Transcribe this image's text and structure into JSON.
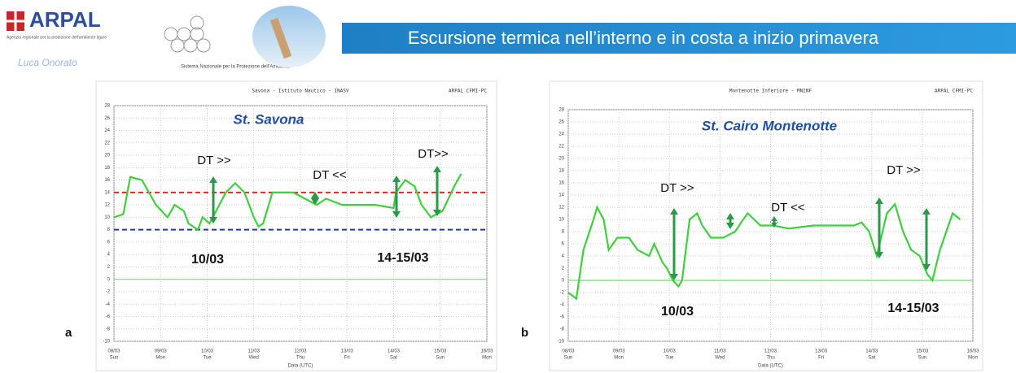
{
  "header": {
    "logo": "ARPAL",
    "logo_subtitle": "Agenzia regionale per la protezione dell'ambiente ligure",
    "author": "Luca Onorato",
    "network": "Sistema Nazionale per la Protezione dell'Ambiente",
    "title": "Escursione termica nell’interno e in costa a inizio primavera"
  },
  "chart_data": [
    {
      "type": "line",
      "panel": "a",
      "title": "St. Savona",
      "station": "Savona - Istituto Nautico - INASV",
      "source": "ARPAL CFMI-PC",
      "x_label": "Data (UTC)",
      "xlim": [
        0,
        8
      ],
      "xticks": [
        {
          "value": 0,
          "label": "08/03"
        },
        {
          "value": 1,
          "label": "09/03"
        },
        {
          "value": 2,
          "label": "10/03"
        },
        {
          "value": 3,
          "label": "11/03"
        },
        {
          "value": 4,
          "label": "12/03"
        },
        {
          "value": 5,
          "label": "13/03"
        },
        {
          "value": 6,
          "label": "14/03"
        },
        {
          "value": 7,
          "label": "15/03"
        },
        {
          "value": 8,
          "label": "16/03"
        }
      ],
      "xtick_weekdays": [
        "Sun",
        "Mon",
        "Tue",
        "Wed",
        "Thu",
        "Fri",
        "Sat",
        "Sun",
        "Mon"
      ],
      "ylim": [
        -10,
        28
      ],
      "yticks": [
        -10,
        -8,
        -6,
        -4,
        -2,
        0,
        2,
        4,
        6,
        8,
        10,
        12,
        14,
        16,
        18,
        20,
        22,
        24,
        26,
        28
      ],
      "grid": true,
      "hlines": [
        {
          "value": 14,
          "color": "#e02828",
          "dashed": true
        },
        {
          "value": 8,
          "color": "#1f3f9f",
          "dashed": true
        },
        {
          "value": 0,
          "color": "#7ed87e",
          "dashed": false
        }
      ],
      "series": [
        {
          "color": "#3fcf3f",
          "x": [
            0,
            0.2,
            0.35,
            0.6,
            0.9,
            1.15,
            1.3,
            1.5,
            1.6,
            1.8,
            1.9,
            2.05,
            2.4,
            2.6,
            2.8,
            3.0,
            3.1,
            3.2,
            3.4,
            3.85,
            4.1,
            4.35,
            4.55,
            4.9,
            5.6,
            6.0,
            6.05,
            6.25,
            6.45,
            6.6,
            6.8,
            7.05,
            7.3,
            7.45
          ],
          "values": [
            10,
            10.5,
            16.5,
            16,
            12,
            10,
            12,
            11,
            9,
            8,
            10,
            9,
            14,
            15.5,
            14,
            10,
            8.5,
            9,
            14,
            14,
            13,
            12,
            13,
            12,
            12,
            11.5,
            14,
            16,
            15,
            12,
            10,
            11,
            15,
            17
          ]
        }
      ],
      "annotations": [
        "DT >>",
        "DT <<",
        "DT>>",
        "10/03",
        "14-15/03"
      ]
    },
    {
      "type": "line",
      "panel": "b",
      "title": "St. Cairo Montenotte",
      "station": "Montenotte Inferiore - MNINF",
      "source": "ARPAL CFMI-PC",
      "x_label": "Data (UTC)",
      "xlim": [
        0,
        8
      ],
      "xticks": [
        {
          "value": 0,
          "label": "08/03"
        },
        {
          "value": 1,
          "label": "09/03"
        },
        {
          "value": 2,
          "label": "10/03"
        },
        {
          "value": 3,
          "label": "11/03"
        },
        {
          "value": 4,
          "label": "12/03"
        },
        {
          "value": 5,
          "label": "13/03"
        },
        {
          "value": 6,
          "label": "14/03"
        },
        {
          "value": 7,
          "label": "15/03"
        },
        {
          "value": 8,
          "label": "16/03"
        }
      ],
      "xtick_weekdays": [
        "Sun",
        "Mon",
        "Tue",
        "Wed",
        "Thu",
        "Fri",
        "Sat",
        "Sun",
        "Mon"
      ],
      "ylim": [
        -10,
        28
      ],
      "yticks": [
        -10,
        -8,
        -6,
        -4,
        -2,
        0,
        2,
        4,
        6,
        8,
        10,
        12,
        14,
        16,
        18,
        20,
        22,
        24,
        26,
        28
      ],
      "grid": true,
      "hlines": [
        {
          "value": 0,
          "color": "#7ed87e",
          "dashed": false
        }
      ],
      "series": [
        {
          "color": "#3fcf3f",
          "x": [
            0,
            0.16,
            0.3,
            0.5,
            0.57,
            0.7,
            0.8,
            0.97,
            1.2,
            1.37,
            1.6,
            1.7,
            1.86,
            1.95,
            2.07,
            2.18,
            2.25,
            2.4,
            2.55,
            2.65,
            2.82,
            3.06,
            3.3,
            3.46,
            3.55,
            3.8,
            4.05,
            4.36,
            4.85,
            5.65,
            5.8,
            5.95,
            6.1,
            6.3,
            6.46,
            6.62,
            6.78,
            6.95,
            7.1,
            7.2,
            7.35,
            7.6,
            7.75
          ],
          "values": [
            -2,
            -3,
            5,
            10,
            12,
            10,
            5,
            7,
            7,
            5,
            4,
            6,
            3,
            2,
            0,
            -1,
            0,
            10,
            11,
            9,
            7,
            7,
            8,
            10,
            11,
            9,
            9,
            8.5,
            9,
            9,
            9.5,
            8,
            4,
            11,
            12.5,
            8,
            5,
            4,
            1,
            0,
            5,
            11,
            10
          ]
        }
      ],
      "annotations": [
        "DT >>",
        "DT <<",
        "DT >>",
        "10/03",
        "14-15/03"
      ]
    }
  ]
}
